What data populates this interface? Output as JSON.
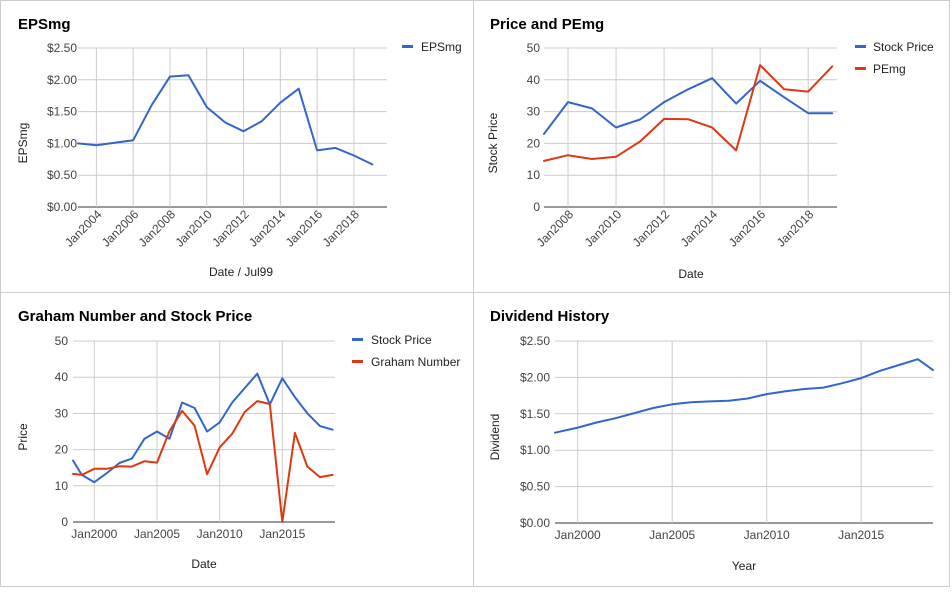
{
  "chart_data": [
    {
      "id": "eps",
      "type": "line",
      "title": "EPSmg",
      "xlabel": "Date / Jul99",
      "ylabel": "EPSmg",
      "x_tick_labels": [
        "Jan2004",
        "Jan2006",
        "Jan2008",
        "Jan2010",
        "Jan2012",
        "Jan2014",
        "Jan2016",
        "Jan2018"
      ],
      "y_tick_labels": [
        "$0.00",
        "$0.50",
        "$1.00",
        "$1.50",
        "$2.00",
        "$2.50"
      ],
      "ylim": [
        0,
        2.5
      ],
      "xlim": [
        2003,
        2019.8
      ],
      "legend_position": "right",
      "grid": true,
      "series": [
        {
          "name": "EPSmg",
          "color": "#3366cc",
          "x": [
            2003,
            2004,
            2005,
            2006,
            2007,
            2008,
            2009,
            2010,
            2011,
            2012,
            2013,
            2014,
            2015,
            2016,
            2017,
            2018,
            2019
          ],
          "values": [
            1.0,
            0.97,
            1.01,
            1.05,
            1.6,
            2.05,
            2.07,
            1.57,
            1.33,
            1.19,
            1.35,
            1.64,
            1.86,
            0.89,
            0.93,
            0.81,
            0.67
          ]
        }
      ]
    },
    {
      "id": "pe",
      "type": "line",
      "title": "Price and PEmg",
      "xlabel": "Date",
      "ylabel": "Stock Price",
      "x_tick_labels": [
        "Jan2008",
        "Jan2010",
        "Jan2012",
        "Jan2014",
        "Jan2016",
        "Jan2018"
      ],
      "y_tick_labels": [
        "0",
        "10",
        "20",
        "30",
        "40",
        "50"
      ],
      "ylim": [
        0,
        50
      ],
      "xlim": [
        2007,
        2019.2
      ],
      "legend_position": "right",
      "grid": true,
      "series": [
        {
          "name": "Stock Price",
          "color": "#3366cc",
          "x": [
            2007,
            2008,
            2009,
            2010,
            2011,
            2012,
            2013,
            2014,
            2015,
            2016,
            2017,
            2018,
            2019
          ],
          "values": [
            23,
            33,
            31,
            25,
            27.5,
            33,
            37,
            40.5,
            32.5,
            39.7,
            34.5,
            29.5,
            29.5
          ]
        },
        {
          "name": "PEmg",
          "color": "#dc3912",
          "x": [
            2007,
            2008,
            2009,
            2010,
            2011,
            2012,
            2013,
            2014,
            2015,
            2016,
            2017,
            2018,
            2019
          ],
          "values": [
            14.5,
            16.3,
            15.1,
            15.8,
            20.6,
            27.7,
            27.6,
            25,
            17.8,
            44.6,
            37,
            36.3,
            44.2
          ]
        }
      ]
    },
    {
      "id": "graham",
      "type": "line",
      "title": "Graham Number and Stock Price",
      "xlabel": "Date",
      "ylabel": "Price",
      "x_tick_labels": [
        "Jan2000",
        "Jan2005",
        "Jan2010",
        "Jan2015"
      ],
      "y_tick_labels": [
        "0",
        "10",
        "20",
        "30",
        "40",
        "50"
      ],
      "ylim": [
        0,
        50
      ],
      "xlim": [
        1998.3,
        2019.2
      ],
      "legend_position": "right",
      "grid": true,
      "series": [
        {
          "name": "Stock Price",
          "color": "#3366cc",
          "x": [
            1998.3,
            1999,
            2000,
            2001,
            2002,
            2003,
            2004,
            2005,
            2006,
            2007,
            2008,
            2009,
            2010,
            2011,
            2012,
            2013,
            2014,
            2015,
            2016,
            2017,
            2018,
            2019
          ],
          "values": [
            17,
            13,
            11,
            13.5,
            16.3,
            17.5,
            23,
            25,
            23,
            33,
            31.5,
            25,
            27.5,
            33,
            37,
            41,
            32.5,
            39.7,
            34.5,
            30,
            26.5,
            25.5
          ]
        },
        {
          "name": "Graham Number",
          "color": "#dc3912",
          "x": [
            1998.3,
            1999,
            2000,
            2001,
            2002,
            2003,
            2004,
            2005,
            2006,
            2007,
            2008,
            2009,
            2010,
            2011,
            2012,
            2013,
            2014,
            2015,
            2016,
            2017,
            2018,
            2019
          ],
          "values": [
            13.3,
            13,
            14.7,
            14.7,
            15.4,
            15.3,
            16.8,
            16.4,
            25.1,
            30.7,
            26.6,
            13.2,
            20.6,
            24.4,
            30.4,
            33.4,
            32.6,
            0,
            24.6,
            15.3,
            12.4,
            13
          ]
        }
      ]
    },
    {
      "id": "dividend",
      "type": "line",
      "title": "Dividend History",
      "xlabel": "Year",
      "ylabel": "Dividend",
      "x_tick_labels": [
        "Jan2000",
        "Jan2005",
        "Jan2010",
        "Jan2015"
      ],
      "y_tick_labels": [
        "$0.00",
        "$0.50",
        "$1.00",
        "$1.50",
        "$2.00",
        "$2.50"
      ],
      "ylim": [
        0,
        2.5
      ],
      "xlim": [
        1998.8,
        2018.8
      ],
      "legend_position": "none",
      "grid": true,
      "series": [
        {
          "name": "",
          "color": "#3366cc",
          "x": [
            1998.8,
            2000,
            2001,
            2002,
            2003,
            2004,
            2005,
            2006,
            2007,
            2008,
            2009,
            2010,
            2011,
            2012,
            2013,
            2014,
            2015,
            2016,
            2017,
            2018,
            2018.8
          ],
          "values": [
            1.24,
            1.31,
            1.38,
            1.44,
            1.51,
            1.58,
            1.63,
            1.66,
            1.67,
            1.68,
            1.71,
            1.77,
            1.81,
            1.84,
            1.86,
            1.92,
            1.99,
            2.09,
            2.17,
            2.25,
            2.1
          ]
        }
      ]
    }
  ]
}
